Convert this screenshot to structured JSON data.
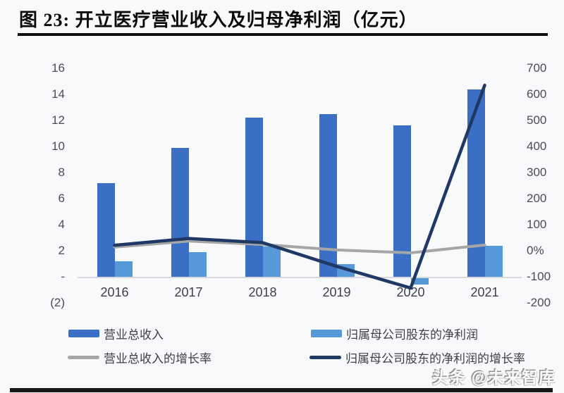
{
  "header": {
    "title": "图 23:  开立医疗营业收入及归母净利润（亿元）"
  },
  "watermark": "头条 @未来智库",
  "colors": {
    "revenue_bar": "#3B6EC5",
    "profit_bar": "#5599D8",
    "revenue_growth_line": "#A6A6A6",
    "profit_growth_line": "#1F3864",
    "axis_text": "#4C4C55",
    "axis_line": "#D8D8DD",
    "title_rule": "#101010",
    "background": "#F8F9FB"
  },
  "chart_data": {
    "type": "bar+line combo",
    "title": "开立医疗营业收入及归母净利润（亿元）",
    "categories": [
      "2016",
      "2017",
      "2018",
      "2019",
      "2020",
      "2021"
    ],
    "bar_series": [
      {
        "name": "营业总收入",
        "axis": "left",
        "color": "#3B6EC5",
        "values": [
          7.2,
          9.9,
          12.2,
          12.5,
          11.6,
          14.4
        ]
      },
      {
        "name": "归属母公司股东的净利润",
        "axis": "left",
        "color": "#5599D8",
        "values": [
          1.2,
          1.9,
          2.3,
          1.0,
          -0.5,
          2.4
        ]
      }
    ],
    "line_series": [
      {
        "name": "营业总收入的增长率",
        "axis": "right",
        "color": "#A6A6A6",
        "values": [
          14,
          37,
          24,
          3,
          -8,
          22
        ]
      },
      {
        "name": "归属母公司股东的净利润的增长率",
        "axis": "right",
        "color": "#1F3864",
        "values": [
          21,
          47,
          31,
          -60,
          -143,
          635
        ]
      }
    ],
    "left_axis": {
      "min": -2,
      "max": 16,
      "step": 2,
      "tick_labels": [
        "16",
        "14",
        "12",
        "10",
        "8",
        "6",
        "4",
        "2",
        "-",
        "(2)"
      ]
    },
    "right_axis": {
      "min": -200,
      "max": 700,
      "step": 100,
      "tick_labels": [
        "700",
        "600",
        "500",
        "400",
        "300",
        "200",
        "100",
        "0%",
        "-100",
        "-200"
      ]
    },
    "grid": false,
    "legend_position": "bottom"
  }
}
